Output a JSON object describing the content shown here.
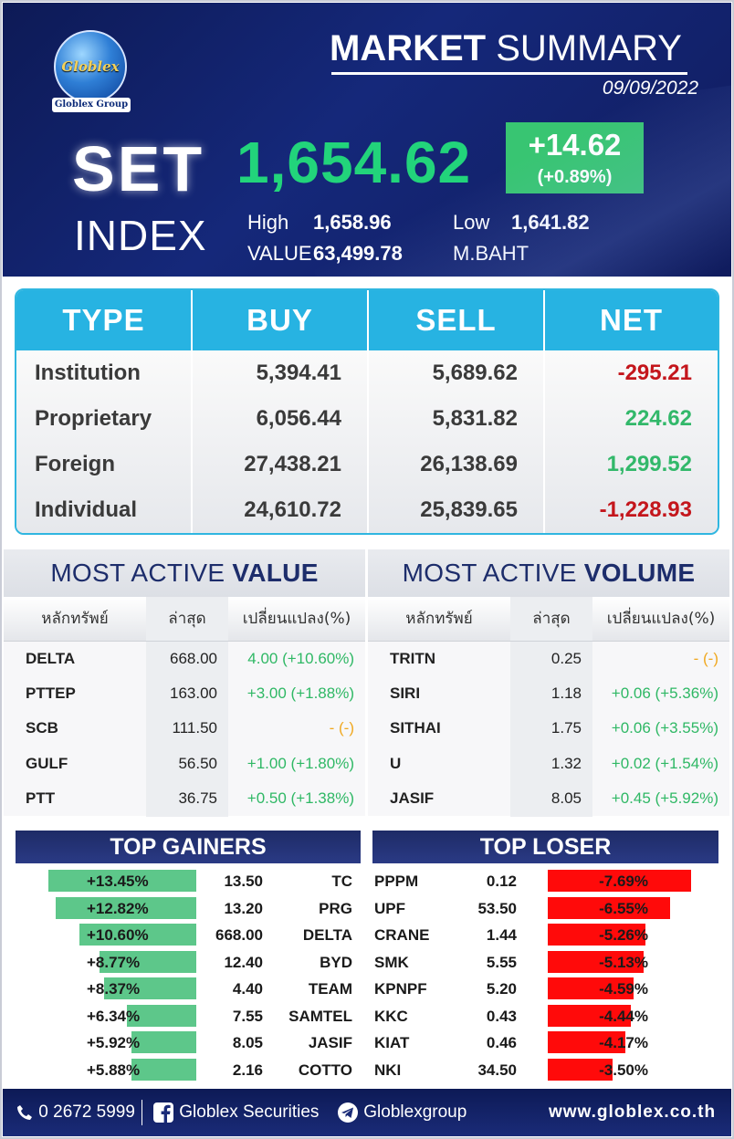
{
  "brand": {
    "logo_text": "Globlex",
    "group_text": "Globlex Group"
  },
  "header": {
    "title_bold": "MARKET",
    "title_rest": "SUMMARY",
    "date": "09/09/2022"
  },
  "set": {
    "word1": "SET",
    "word2": "INDEX",
    "value": "1,654.62",
    "change": "+14.62",
    "change_pct": "(+0.89%)",
    "high_label": "High",
    "high": "1,658.96",
    "low_label": "Low",
    "low": "1,641.82",
    "value_label": "VALUE",
    "traded_value": "63,499.78",
    "unit": "M.BAHT"
  },
  "investor": {
    "headers": [
      "TYPE",
      "BUY",
      "SELL",
      "NET"
    ],
    "rows": [
      {
        "type": "Institution",
        "buy": "5,394.41",
        "sell": "5,689.62",
        "net": "-295.21"
      },
      {
        "type": "Proprietary",
        "buy": "6,056.44",
        "sell": "5,831.82",
        "net": "224.62"
      },
      {
        "type": "Foreign",
        "buy": "27,438.21",
        "sell": "26,138.69",
        "net": "1,299.52"
      },
      {
        "type": "Individual",
        "buy": "24,610.72",
        "sell": "25,839.65",
        "net": "-1,228.93"
      }
    ]
  },
  "most_active_value": {
    "title_light": "MOST ACTIVE",
    "title_bold": "VALUE",
    "headers": [
      "หลักทรัพย์",
      "ล่าสุด",
      "เปลี่ยนแปลง(%)"
    ],
    "rows": [
      {
        "symbol": "DELTA",
        "last": "668.00",
        "change": "4.00 (+10.60%)"
      },
      {
        "symbol": "PTTEP",
        "last": "163.00",
        "change": "+3.00 (+1.88%)"
      },
      {
        "symbol": "SCB",
        "last": "111.50",
        "change": "- (-)"
      },
      {
        "symbol": "GULF",
        "last": "56.50",
        "change": "+1.00 (+1.80%)"
      },
      {
        "symbol": "PTT",
        "last": "36.75",
        "change": "+0.50 (+1.38%)"
      }
    ]
  },
  "most_active_volume": {
    "title_light": "MOST ACTIVE",
    "title_bold": "VOLUME",
    "headers": [
      "หลักทรัพย์",
      "ล่าสุด",
      "เปลี่ยนแปลง(%)"
    ],
    "rows": [
      {
        "symbol": "TRITN",
        "last": "0.25",
        "change": "- (-)"
      },
      {
        "symbol": "SIRI",
        "last": "1.18",
        "change": "+0.06 (+5.36%)"
      },
      {
        "symbol": "SITHAI",
        "last": "1.75",
        "change": "+0.06 (+3.55%)"
      },
      {
        "symbol": "U",
        "last": "1.32",
        "change": "+0.02 (+1.54%)"
      },
      {
        "symbol": "JASIF",
        "last": "8.05",
        "change": "+0.45 (+5.92%)"
      }
    ]
  },
  "top_gainers": {
    "title": "TOP GAINERS",
    "rows": [
      {
        "pct": "+13.45%",
        "price": "13.50",
        "symbol": "TC",
        "value": 13.45
      },
      {
        "pct": "+12.82%",
        "price": "13.20",
        "symbol": "PRG",
        "value": 12.82
      },
      {
        "pct": "+10.60%",
        "price": "668.00",
        "symbol": "DELTA",
        "value": 10.6
      },
      {
        "pct": "+8.77%",
        "price": "12.40",
        "symbol": "BYD",
        "value": 8.77
      },
      {
        "pct": "+8.37%",
        "price": "4.40",
        "symbol": "TEAM",
        "value": 8.37
      },
      {
        "pct": "+6.34%",
        "price": "7.55",
        "symbol": "SAMTEL",
        "value": 6.34
      },
      {
        "pct": "+5.92%",
        "price": "8.05",
        "symbol": "JASIF",
        "value": 5.92
      },
      {
        "pct": "+5.88%",
        "price": "2.16",
        "symbol": "COTTO",
        "value": 5.88
      }
    ]
  },
  "top_losers": {
    "title": "TOP LOSER",
    "rows": [
      {
        "symbol": "PPPM",
        "price": "0.12",
        "pct": "-7.69%",
        "value": 7.69
      },
      {
        "symbol": "UPF",
        "price": "53.50",
        "pct": "-6.55%",
        "value": 6.55
      },
      {
        "symbol": "CRANE",
        "price": "1.44",
        "pct": "-5.26%",
        "value": 5.26
      },
      {
        "symbol": "SMK",
        "price": "5.55",
        "pct": "-5.13%",
        "value": 5.13
      },
      {
        "symbol": "KPNPF",
        "price": "5.20",
        "pct": "-4.59%",
        "value": 4.59
      },
      {
        "symbol": "KKC",
        "price": "0.43",
        "pct": "-4.44%",
        "value": 4.44
      },
      {
        "symbol": "KIAT",
        "price": "0.46",
        "pct": "-4.17%",
        "value": 4.17
      },
      {
        "symbol": "NKI",
        "price": "34.50",
        "pct": "-3.50%",
        "value": 3.5
      }
    ]
  },
  "footer": {
    "phone": "0 2672 5999",
    "facebook": "Globlex Securities",
    "telegram": "Globlexgroup",
    "website": "www.globlex.co.th"
  },
  "colors": {
    "navy": "#101c5e",
    "green": "#22d47b",
    "cyan": "#27b3e2",
    "red": "#ff0a0a",
    "gain": "#5dc78a"
  }
}
